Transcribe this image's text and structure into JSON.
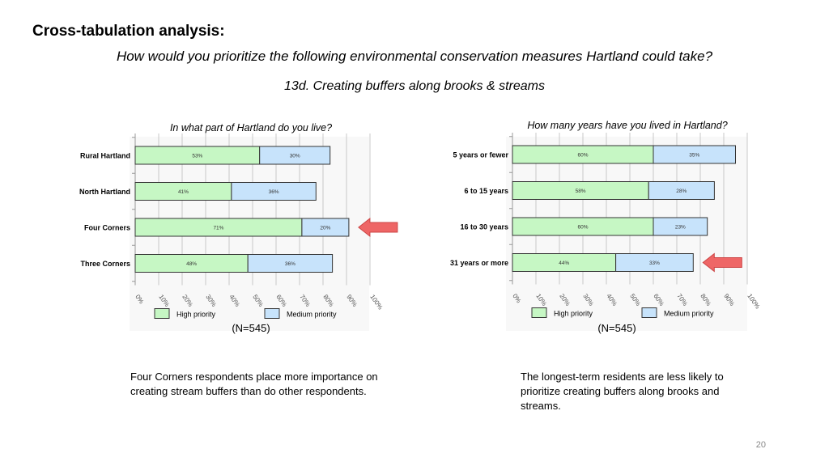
{
  "heading": "Cross-tabulation analysis:",
  "question": "How would you prioritize the following environmental conservation measures Hartland could take?",
  "subquestion": "13d. Creating buffers along brooks & streams",
  "colors": {
    "high": "#c6f7c4",
    "medium": "#c7e3fb",
    "arrow": "#ee6666"
  },
  "chart_data": [
    {
      "type": "bar",
      "stacked": true,
      "orientation": "horizontal",
      "title": "In what part of Hartland do you live?",
      "categories": [
        "Rural Hartland",
        "North Hartland",
        "Four Corners",
        "Three Corners"
      ],
      "series": [
        {
          "name": "High priority",
          "values": [
            53,
            41,
            71,
            48
          ],
          "labels": [
            "53%",
            "41%",
            "71%",
            "48%"
          ]
        },
        {
          "name": "Medium priority",
          "values": [
            30,
            36,
            20,
            36
          ],
          "labels": [
            "30%",
            "36%",
            "20%",
            "36%"
          ]
        }
      ],
      "xlim": [
        0,
        100
      ],
      "ticks": [
        "0%",
        "10%",
        "20%",
        "30%",
        "40%",
        "50%",
        "60%",
        "70%",
        "80%",
        "90%",
        "100%"
      ],
      "grid": true,
      "legend_position": "bottom",
      "note": "(N=545)",
      "highlight": "Four Corners"
    },
    {
      "type": "bar",
      "stacked": true,
      "orientation": "horizontal",
      "title": "How many years have you lived in Hartland?",
      "categories": [
        "5 years or fewer",
        "6 to 15 years",
        "16 to 30 years",
        "31 years or more"
      ],
      "series": [
        {
          "name": "High priority",
          "values": [
            60,
            58,
            60,
            44
          ],
          "labels": [
            "60%",
            "58%",
            "60%",
            "44%"
          ]
        },
        {
          "name": "Medium priority",
          "values": [
            35,
            28,
            23,
            33
          ],
          "labels": [
            "35%",
            "28%",
            "23%",
            "33%"
          ]
        }
      ],
      "xlim": [
        0,
        100
      ],
      "ticks": [
        "0%",
        "10%",
        "20%",
        "30%",
        "40%",
        "50%",
        "60%",
        "70%",
        "80%",
        "90%",
        "100%"
      ],
      "grid": true,
      "legend_position": "bottom",
      "note": "(N=545)",
      "highlight": "31 years or more"
    }
  ],
  "captions": [
    "Four Corners respondents place more importance on creating stream buffers than do other respondents.",
    "The longest-term residents are less likely to prioritize creating buffers along brooks and streams."
  ],
  "page_number": "20"
}
